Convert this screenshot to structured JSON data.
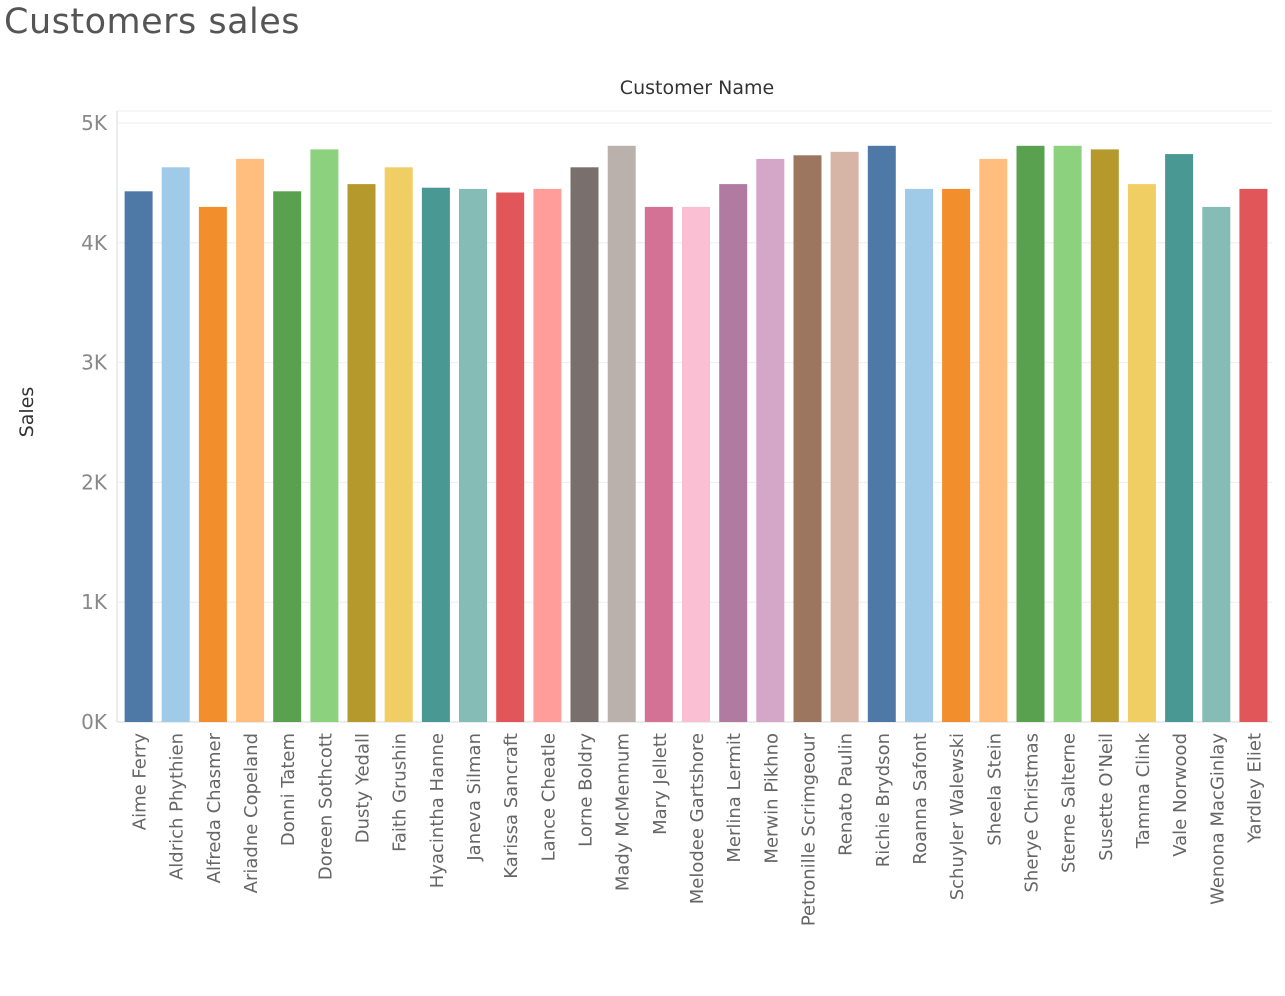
{
  "chart_data": {
    "type": "bar",
    "title": "Customers sales",
    "column_header": "Customer Name",
    "xlabel": "",
    "ylabel": "Sales",
    "ylim": [
      0,
      5000
    ],
    "y_ticks": [
      "0K",
      "1K",
      "2K",
      "3K",
      "4K",
      "5K"
    ],
    "grid": true,
    "categories": [
      "Aime Ferry",
      "Aldrich Phythien",
      "Alfreda Chasmer",
      "Ariadne Copeland",
      "Donni Tatem",
      "Doreen Sothcott",
      "Dusty Yedall",
      "Faith Grushin",
      "Hyacintha Hanne",
      "Janeva Silman",
      "Karissa Sancraft",
      "Lance Cheatle",
      "Lorne Boldry",
      "Mady McMennum",
      "Mary Jellett",
      "Melodee Gartshore",
      "Merlina Lermit",
      "Merwin Pikhno",
      "Petronille Scrimgeour",
      "Renato Paulin",
      "Richie Brydson",
      "Roanna Safont",
      "Schuyler Walewski",
      "Sheela Stein",
      "Sherye Christmas",
      "Sterne Salterne",
      "Susette O'Neil",
      "Tamma Clink",
      "Vale Norwood",
      "Wenona MacGinlay",
      "Yardley Eliet"
    ],
    "values": [
      4430,
      4630,
      4300,
      4700,
      4430,
      4780,
      4490,
      4630,
      4460,
      4450,
      4420,
      4450,
      4630,
      4810,
      4300,
      4300,
      4490,
      4700,
      4730,
      4760,
      4810,
      4450,
      4450,
      4700,
      4810,
      4810,
      4780,
      4490,
      4740,
      4300,
      4450
    ],
    "colors": [
      "#4e79a7",
      "#a0cbe8",
      "#f28e2b",
      "#ffbe7d",
      "#59a14f",
      "#8cd17d",
      "#b6992d",
      "#f1ce63",
      "#499894",
      "#86bcb6",
      "#e15759",
      "#ff9d9a",
      "#79706e",
      "#bab0ac",
      "#d37295",
      "#fabfd2",
      "#b07aa1",
      "#d4a6c8",
      "#9d7660",
      "#d7b5a6",
      "#4e79a7",
      "#a0cbe8",
      "#f28e2b",
      "#ffbe7d",
      "#59a14f",
      "#8cd17d",
      "#b6992d",
      "#f1ce63",
      "#499894",
      "#86bcb6",
      "#e15759"
    ]
  }
}
